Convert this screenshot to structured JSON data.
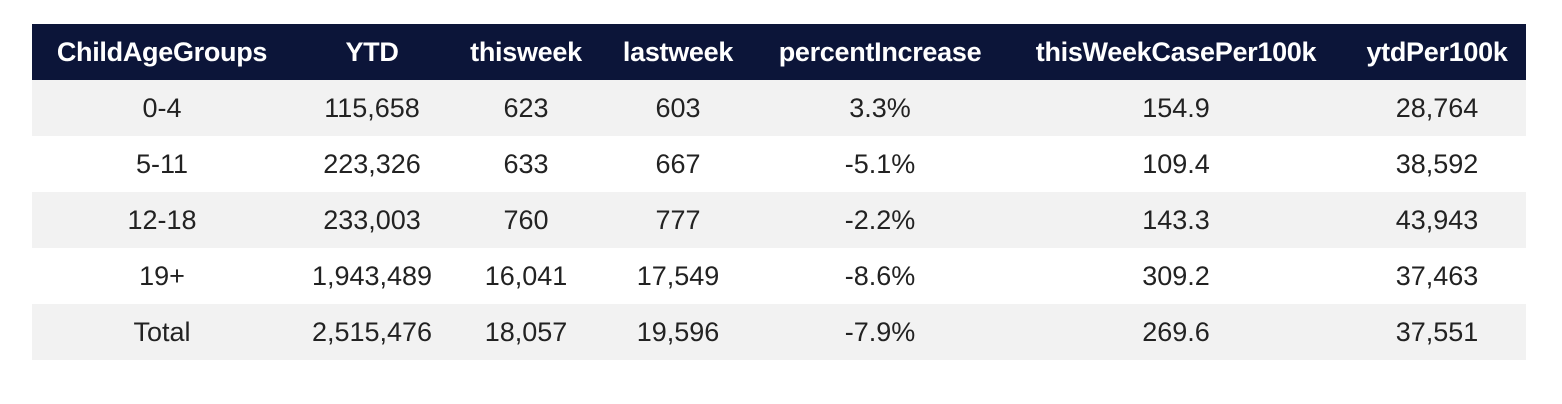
{
  "colors": {
    "header_bg": "#0c1539",
    "header_text": "#ffffff",
    "row_alt_bg": "#f2f2f2",
    "row_bg": "#ffffff",
    "cell_text": "#222222"
  },
  "chart_data": {
    "type": "table",
    "columns": [
      "ChildAgeGroups",
      "YTD",
      "thisweek",
      "lastweek",
      "percentIncrease",
      "thisWeekCasePer100k",
      "ytdPer100k"
    ],
    "rows": [
      [
        "0-4",
        "115,658",
        "623",
        "603",
        "3.3%",
        "154.9",
        "28,764"
      ],
      [
        "5-11",
        "223,326",
        "633",
        "667",
        "-5.1%",
        "109.4",
        "38,592"
      ],
      [
        "12-18",
        "233,003",
        "760",
        "777",
        "-2.2%",
        "143.3",
        "43,943"
      ],
      [
        "19+",
        "1,943,489",
        "16,041",
        "17,549",
        "-8.6%",
        "309.2",
        "37,463"
      ],
      [
        "Total",
        "2,515,476",
        "18,057",
        "19,596",
        "-7.9%",
        "269.6",
        "37,551"
      ]
    ]
  }
}
